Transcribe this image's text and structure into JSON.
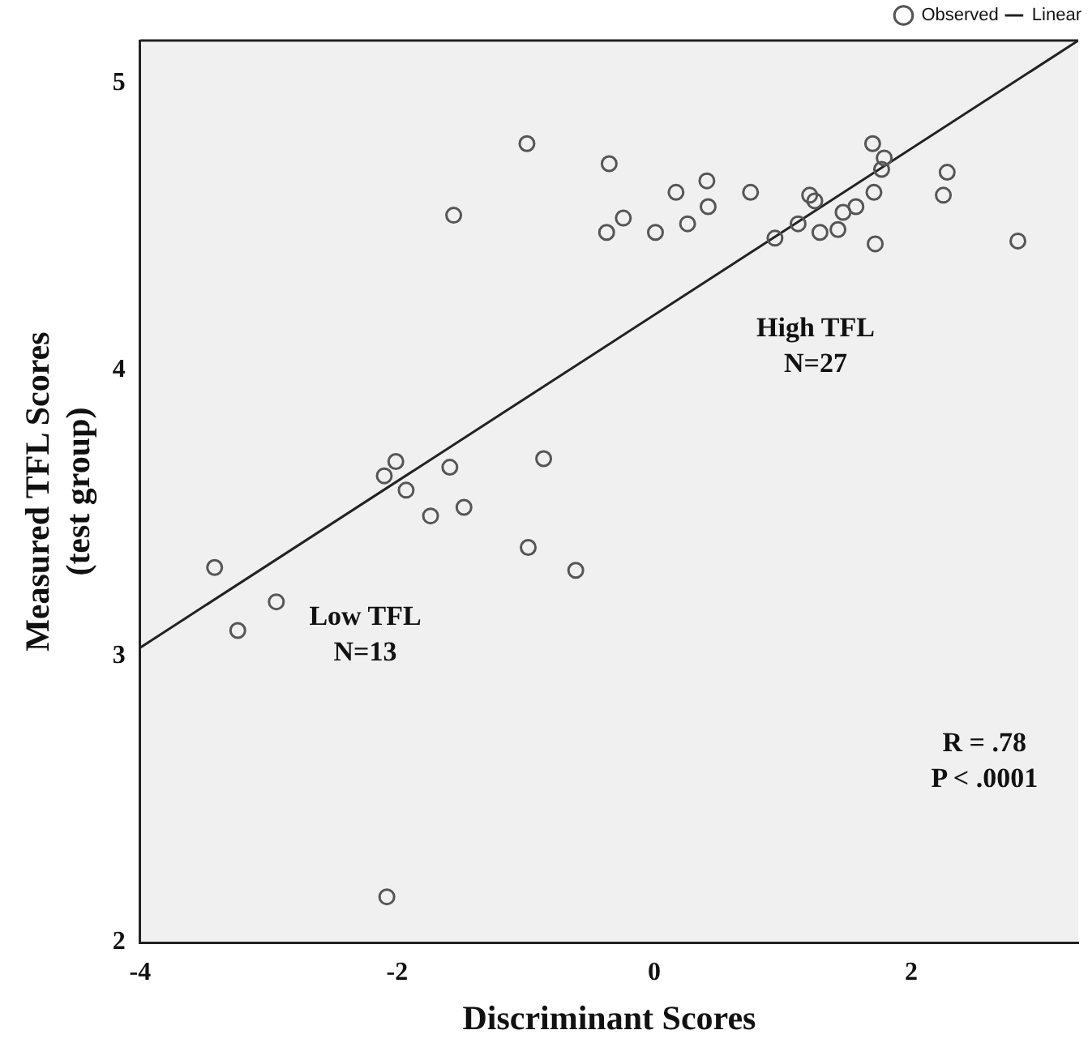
{
  "chart_data": {
    "type": "scatter",
    "xlabel": "Discriminant Scores",
    "ylabel": "Measured TFL Scores\n(test group)",
    "xlim": [
      -4,
      3.3
    ],
    "xticks": [
      -4,
      -2,
      0,
      2
    ],
    "ylim": [
      2,
      5.15
    ],
    "yticks": [
      2,
      3,
      4,
      5
    ],
    "grid": false,
    "legend": "top right",
    "series": [
      {
        "name": "Observed",
        "color": "#555555",
        "type": "scatter",
        "marker": "circle",
        "x": [
          -0.99,
          -1.56,
          -0.35,
          -0.37,
          -0.24,
          0.01,
          0.17,
          0.26,
          0.41,
          0.42,
          0.75,
          0.94,
          1.12,
          1.21,
          1.25,
          1.29,
          1.43,
          1.47,
          1.57,
          1.7,
          1.79,
          1.77,
          1.71,
          1.72,
          2.28,
          2.25,
          2.83,
          -2.01,
          -2.1,
          -1.93,
          -1.59,
          -0.86,
          -1.74,
          -1.48,
          -0.98,
          -0.61,
          -3.42,
          -2.94,
          -3.24,
          -2.08
        ],
        "values": [
          4.79,
          4.54,
          4.72,
          4.48,
          4.53,
          4.48,
          4.62,
          4.51,
          4.66,
          4.57,
          4.62,
          4.46,
          4.51,
          4.61,
          4.59,
          4.48,
          4.49,
          4.55,
          4.57,
          4.79,
          4.74,
          4.7,
          4.62,
          4.44,
          4.69,
          4.61,
          4.45,
          3.68,
          3.63,
          3.58,
          3.66,
          3.69,
          3.49,
          3.52,
          3.38,
          3.3,
          3.31,
          3.19,
          3.09,
          2.16
        ]
      },
      {
        "name": "Linear",
        "color": "#222222",
        "type": "line",
        "marker": "none",
        "line_style": "solid",
        "x": [
          -4,
          3.3
        ],
        "values": [
          3.03,
          5.15
        ]
      }
    ],
    "annotations": [
      "High TFL\nN=27",
      "Low TFL\nN=13",
      "R = .78\nP < .0001"
    ]
  }
}
